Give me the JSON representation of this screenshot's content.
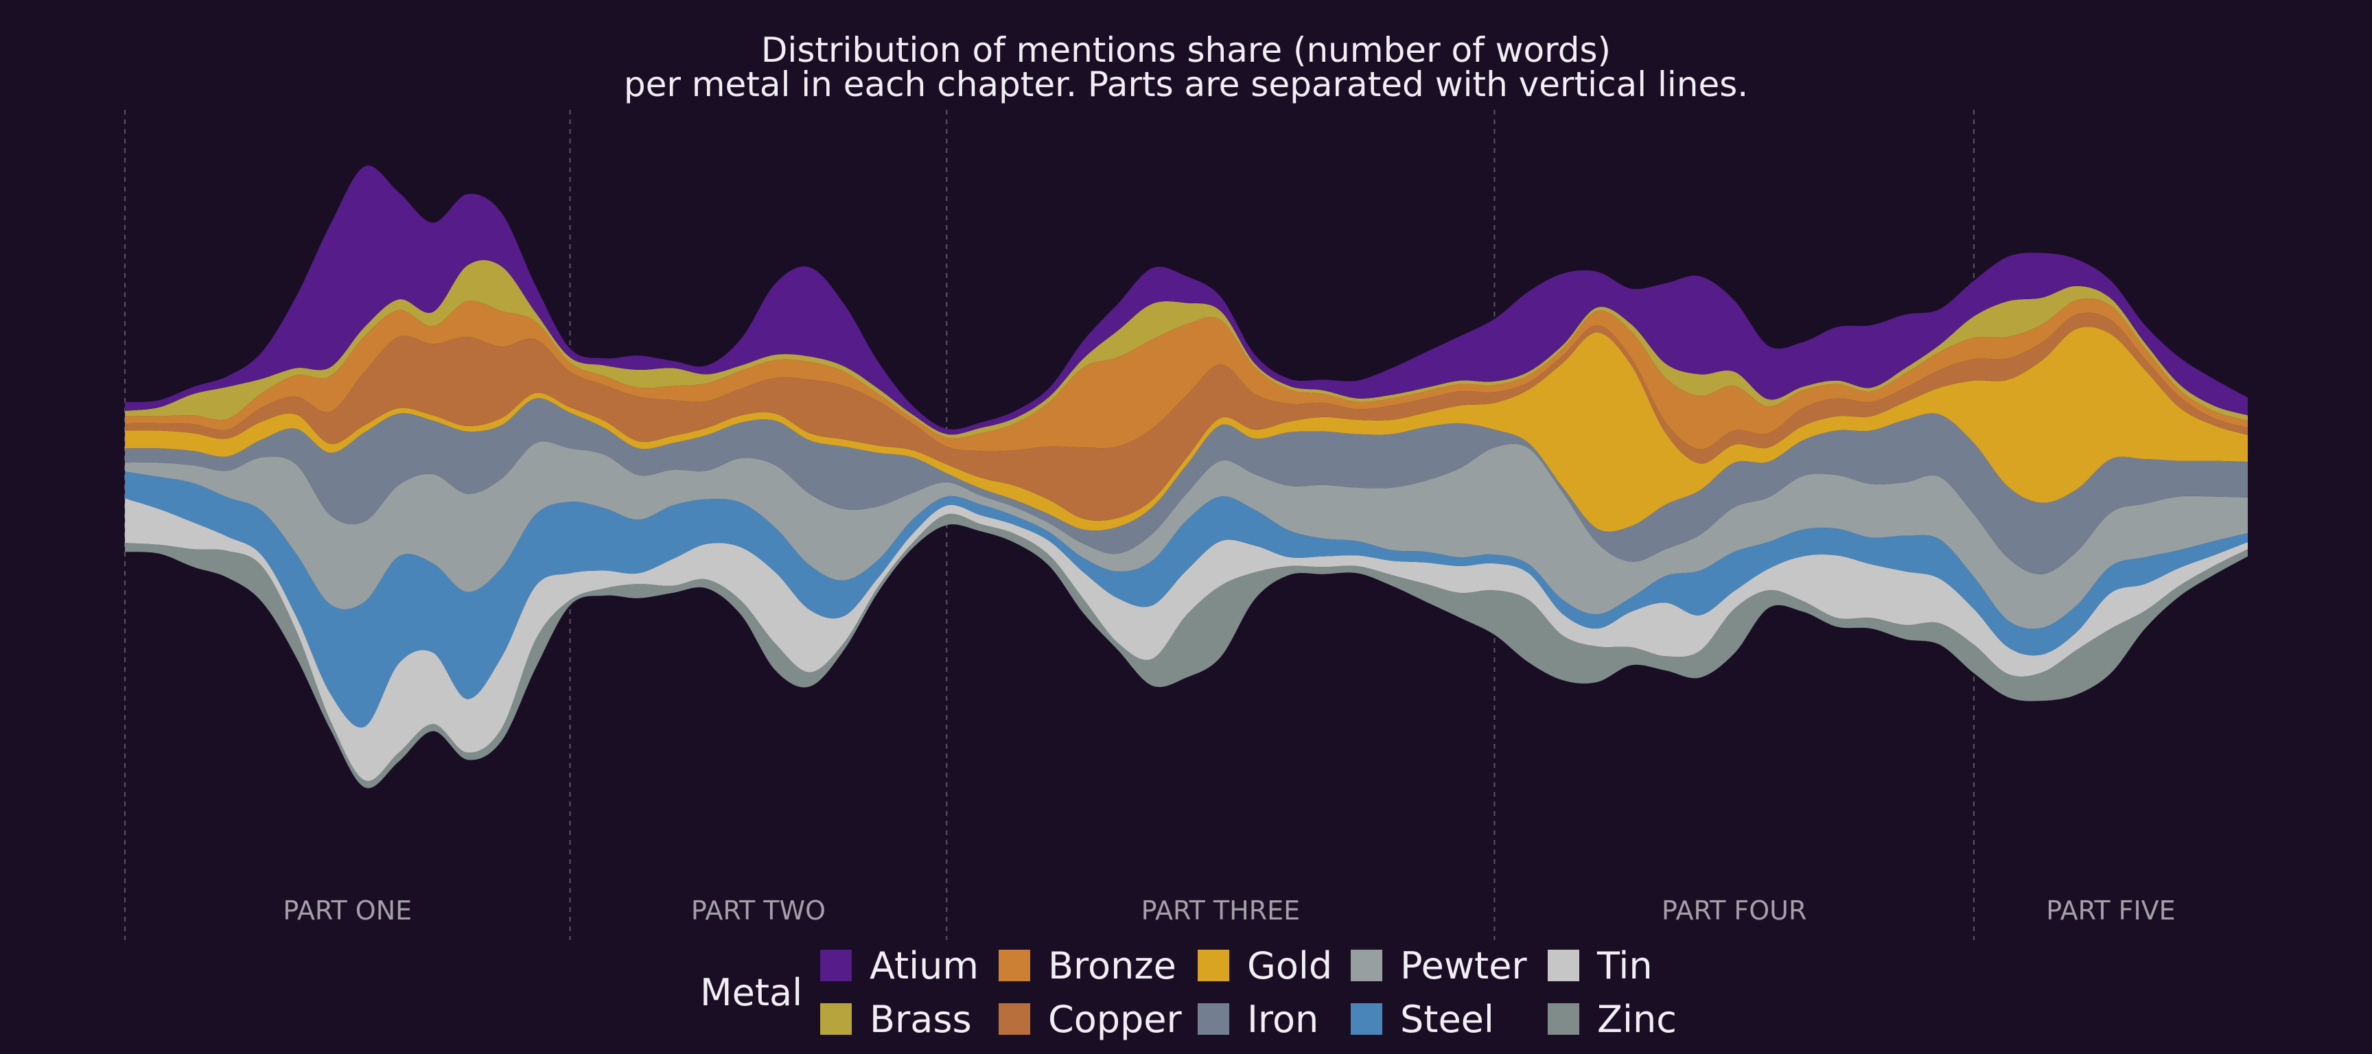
{
  "chart_data": {
    "type": "area",
    "layout": "streamgraph",
    "title": [
      "Distribution of mentions share (number of words)",
      "per metal in each chapter. Parts are separated with vertical lines."
    ],
    "legend": {
      "title": "Metal",
      "placement": "bottom-center"
    },
    "background": "#1a0e24",
    "parts": [
      {
        "label": "PART ONE",
        "start_chapter": 0
      },
      {
        "label": "PART TWO",
        "start_chapter": 13
      },
      {
        "label": "PART THREE",
        "start_chapter": 24
      },
      {
        "label": "PART FOUR",
        "start_chapter": 40
      },
      {
        "label": "PART FIVE",
        "start_chapter": 54
      }
    ],
    "chapters": [
      0,
      1,
      2,
      3,
      4,
      5,
      6,
      7,
      8,
      9,
      10,
      11,
      12,
      13,
      14,
      15,
      16,
      17,
      18,
      19,
      20,
      21,
      22,
      23,
      24,
      25,
      26,
      27,
      28,
      29,
      30,
      31,
      32,
      33,
      34,
      35,
      36,
      37,
      38,
      39,
      40,
      41,
      42,
      43,
      44,
      45,
      46,
      47,
      48,
      49,
      50,
      51,
      52,
      53,
      54,
      55,
      56,
      57,
      58,
      59,
      60,
      61,
      62
    ],
    "series": [
      {
        "name": "Zinc",
        "color": "#7f8c8a",
        "values": [
          0.5,
          0.5,
          1,
          1.5,
          2,
          1.5,
          0.5,
          0.4,
          0.5,
          0.4,
          0.4,
          0.7,
          1.6,
          0.3,
          0.4,
          0.8,
          0.4,
          0.5,
          0.8,
          1.5,
          0.8,
          0.4,
          0.3,
          0.3,
          0.6,
          0.4,
          0.5,
          0.6,
          0.8,
          0.4,
          1.5,
          3.5,
          4,
          1.5,
          0.5,
          0.4,
          0.4,
          0.6,
          1,
          1.4,
          2.5,
          3.5,
          2.5,
          2,
          1,
          0.8,
          1.5,
          2.5,
          1,
          0.6,
          0.5,
          0.6,
          0.8,
          1.2,
          1.6,
          1.3,
          1.6,
          2.5,
          2.5,
          1,
          0.6,
          0.5,
          0.4
        ]
      },
      {
        "name": "Tin",
        "color": "#c6c6c6",
        "values": [
          2.5,
          2,
          1.5,
          0.8,
          0.6,
          0.8,
          1.5,
          3,
          5,
          4,
          3,
          4,
          3,
          1.5,
          1,
          0.6,
          1.5,
          2,
          3,
          4,
          3.5,
          1.5,
          0.5,
          0.5,
          0.5,
          0.5,
          0.5,
          0.8,
          1.5,
          2.5,
          3,
          2.5,
          2.5,
          1.5,
          0.5,
          0.6,
          0.6,
          0.8,
          1.2,
          1.5,
          1.5,
          1.5,
          1.2,
          1,
          2,
          3,
          2,
          1,
          1.2,
          2.5,
          3.5,
          3,
          3,
          2.5,
          2,
          1.5,
          1,
          1,
          2,
          1.5,
          1,
          0.6,
          0.4
        ]
      },
      {
        "name": "Steel",
        "color": "#4a85ba",
        "values": [
          1.5,
          1.8,
          2.2,
          2.2,
          2.5,
          3.5,
          5,
          7,
          6,
          5,
          6,
          5,
          4,
          4,
          3.5,
          3,
          3,
          2.5,
          2.5,
          2.5,
          2.5,
          2,
          1,
          0.8,
          0.5,
          0.6,
          0.5,
          0.5,
          0.8,
          1.5,
          2.5,
          2.8,
          2.5,
          2,
          1.5,
          1,
          0.8,
          0.6,
          0.6,
          0.5,
          0.5,
          0.5,
          0.8,
          0.8,
          0.8,
          1.5,
          2.5,
          2.2,
          1.5,
          1.5,
          1.5,
          1.5,
          2,
          2.2,
          1.8,
          1.5,
          1.5,
          1.5,
          1.5,
          1.5,
          1,
          0.8,
          0.5
        ]
      },
      {
        "name": "Pewter",
        "color": "#979fa0",
        "values": [
          0.5,
          0.8,
          1,
          1.5,
          3,
          5,
          5,
          4.5,
          4,
          5,
          5.5,
          5,
          4,
          3,
          3,
          2.5,
          2,
          1.6,
          2.5,
          3.5,
          4,
          4,
          3,
          1.5,
          0.8,
          0.5,
          0.5,
          0.5,
          0.8,
          1,
          1.5,
          1.5,
          2,
          2,
          2.5,
          3,
          3,
          3.5,
          4,
          5,
          6,
          6.5,
          6,
          4,
          2,
          1.5,
          2,
          2.5,
          2.5,
          3,
          3,
          3,
          3,
          3.5,
          3.5,
          3.5,
          3,
          3,
          3,
          3,
          3,
          2.5,
          2
        ]
      },
      {
        "name": "Iron",
        "color": "#737f91",
        "values": [
          0.8,
          0.8,
          0.8,
          0.8,
          1,
          2,
          3.5,
          5,
          4,
          3,
          3.5,
          3,
          2.5,
          2,
          1.5,
          1.5,
          1.5,
          2,
          2,
          2.5,
          3,
          3.5,
          3,
          2,
          0.5,
          0.4,
          0.4,
          0.5,
          0.8,
          1.5,
          1.5,
          1.6,
          2,
          2,
          3,
          3,
          3,
          3,
          3,
          2.5,
          1,
          0.3,
          0.3,
          0.8,
          2,
          2.5,
          2.5,
          2.5,
          2,
          2,
          2.5,
          3,
          3.5,
          3.5,
          4,
          4,
          4,
          3.5,
          3,
          2.5,
          2,
          2,
          2
        ]
      },
      {
        "name": "Gold",
        "color": "#d9a422",
        "values": [
          1,
          1,
          1,
          1,
          1,
          0.8,
          0.5,
          0.4,
          0.3,
          0.3,
          0.3,
          0.4,
          0.3,
          0.3,
          0.4,
          0.4,
          0.4,
          0.4,
          0.4,
          0.4,
          0.4,
          0.4,
          0.4,
          0.4,
          0.5,
          0.6,
          0.8,
          0.8,
          0.6,
          0.5,
          0.4,
          0.4,
          0.4,
          0.5,
          0.6,
          0.8,
          0.8,
          0.8,
          0.8,
          1,
          1.5,
          3,
          7,
          11,
          9,
          4,
          1.5,
          1,
          0.8,
          0.8,
          0.8,
          0.8,
          1,
          1.5,
          3.5,
          6,
          8,
          9,
          7,
          5,
          3,
          2,
          1.5
        ]
      },
      {
        "name": "Copper",
        "color": "#b86f3c",
        "values": [
          0.4,
          0.4,
          0.5,
          0.5,
          0.8,
          1,
          1.8,
          3,
          4,
          4,
          5,
          4,
          3,
          2,
          2,
          2.5,
          2,
          1.5,
          1.5,
          2,
          3,
          3,
          2.5,
          1.5,
          1,
          1.5,
          2,
          3,
          4,
          4,
          4,
          3.5,
          3,
          2,
          1,
          0.8,
          0.6,
          0.8,
          0.8,
          0.8,
          0.6,
          0.4,
          0.4,
          0.4,
          0.4,
          0.6,
          0.8,
          0.8,
          0.8,
          1,
          1,
          0.8,
          0.8,
          1,
          1.2,
          1.2,
          1,
          0.8,
          0.8,
          0.6,
          0.6,
          0.4,
          0.4
        ]
      },
      {
        "name": "Bronze",
        "color": "#cb8034",
        "values": [
          0.4,
          0.4,
          0.5,
          0.6,
          0.8,
          1.2,
          2,
          2,
          1.5,
          1,
          2,
          2,
          1,
          0.5,
          0.5,
          0.5,
          0.8,
          1,
          1,
          1,
          1,
          0.8,
          0.4,
          0.3,
          0.5,
          1,
          1.5,
          2.5,
          4.5,
          5,
          5,
          4,
          2.5,
          1.5,
          0.8,
          0.5,
          0.4,
          0.4,
          0.4,
          0.4,
          0.4,
          0.4,
          0.4,
          0.8,
          1.5,
          2.5,
          3,
          2.5,
          1.5,
          1,
          0.8,
          0.6,
          0.8,
          1,
          1.2,
          1.2,
          1,
          0.8,
          0.8,
          0.6,
          0.4,
          0.4,
          0.4
        ]
      },
      {
        "name": "Brass",
        "color": "#b8a43d",
        "values": [
          0.3,
          0.5,
          1.2,
          1.8,
          0.8,
          0.4,
          0.5,
          0.5,
          0.6,
          0.8,
          2,
          2.5,
          0.5,
          0.3,
          0.6,
          1,
          1,
          0.5,
          0.3,
          0.3,
          0.3,
          0.3,
          0.3,
          0.2,
          0.2,
          0.3,
          0.3,
          0.3,
          0.5,
          1.5,
          2,
          1.2,
          0.5,
          0.2,
          0.2,
          0.2,
          0.2,
          0.2,
          0.2,
          0.2,
          0.2,
          0.2,
          0.2,
          0.2,
          0.4,
          0.8,
          1.2,
          0.8,
          0.4,
          0.2,
          0.2,
          0.2,
          0.3,
          0.4,
          1.2,
          2,
          1.5,
          0.8,
          0.4,
          0.3,
          0.3,
          0.3,
          0.3
        ]
      },
      {
        "name": "Atium",
        "color": "#551c8a",
        "values": [
          0.5,
          0.4,
          0.4,
          0.6,
          1.5,
          4,
          8,
          9,
          6,
          5,
          4,
          3,
          1.5,
          0.5,
          0.4,
          0.8,
          0.4,
          0.5,
          1.5,
          4,
          5,
          3.5,
          1.5,
          0.5,
          0.3,
          0.3,
          0.4,
          0.5,
          1,
          1.5,
          2,
          1.5,
          0.8,
          0.5,
          0.4,
          0.6,
          1,
          1.5,
          2,
          2.5,
          3.5,
          4.5,
          4,
          2,
          2,
          4.5,
          5.5,
          4,
          3,
          2.5,
          3,
          3.5,
          3,
          2,
          2,
          2.5,
          2.5,
          1.5,
          1,
          1,
          1.5,
          1.5,
          1
        ]
      }
    ],
    "legend_order": [
      "Atium",
      "Brass",
      "Bronze",
      "Copper",
      "Gold",
      "Iron",
      "Pewter",
      "Steel",
      "Tin",
      "Zinc"
    ]
  }
}
